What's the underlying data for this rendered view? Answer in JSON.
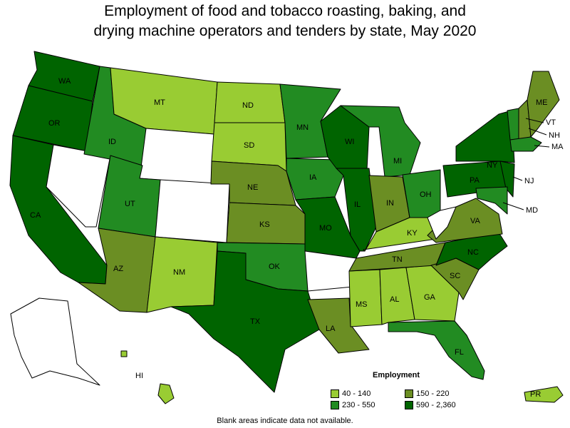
{
  "title_line1": "Employment of food and tobacco roasting, baking, and",
  "title_line2": "drying machine operators and tenders by state, May 2020",
  "legend": {
    "title": "Employment",
    "bins": [
      {
        "label": "40 - 140",
        "color": "#99cc33"
      },
      {
        "label": "150 - 220",
        "color": "#6b8e23"
      },
      {
        "label": "230 - 550",
        "color": "#228b22"
      },
      {
        "label": "590 - 2,360",
        "color": "#006400"
      }
    ]
  },
  "note": "Blank areas indicate data not available.",
  "colors": {
    "no_data": "#ffffff",
    "bin1": "#99cc33",
    "bin2": "#6b8e23",
    "bin3": "#228b22",
    "bin4": "#006400"
  },
  "states": {
    "WA": {
      "label": "WA",
      "bin": "590 - 2,360"
    },
    "OR": {
      "label": "OR",
      "bin": "590 - 2,360"
    },
    "CA": {
      "label": "CA",
      "bin": "590 - 2,360"
    },
    "ID": {
      "label": "ID",
      "bin": "230 - 550"
    },
    "MT": {
      "label": "MT",
      "bin": "40 - 140"
    },
    "ND": {
      "label": "ND",
      "bin": "40 - 140"
    },
    "SD": {
      "label": "SD",
      "bin": "40 - 140"
    },
    "MN": {
      "label": "MN",
      "bin": "230 - 550"
    },
    "WI": {
      "label": "WI",
      "bin": "590 - 2,360"
    },
    "MI": {
      "label": "MI",
      "bin": "230 - 550"
    },
    "UT": {
      "label": "UT",
      "bin": "230 - 550"
    },
    "NE": {
      "label": "NE",
      "bin": "150 - 220"
    },
    "IA": {
      "label": "IA",
      "bin": "230 - 550"
    },
    "IL": {
      "label": "IL",
      "bin": "590 - 2,360"
    },
    "IN": {
      "label": "IN",
      "bin": "150 - 220"
    },
    "OH": {
      "label": "OH",
      "bin": "230 - 550"
    },
    "KS": {
      "label": "KS",
      "bin": "150 - 220"
    },
    "MO": {
      "label": "MO",
      "bin": "590 - 2,360"
    },
    "KY": {
      "label": "KY",
      "bin": "40 - 140"
    },
    "AZ": {
      "label": "AZ",
      "bin": "150 - 220"
    },
    "NM": {
      "label": "NM",
      "bin": "40 - 140"
    },
    "OK": {
      "label": "OK",
      "bin": "230 - 550"
    },
    "TX": {
      "label": "TX",
      "bin": "590 - 2,360"
    },
    "TN": {
      "label": "TN",
      "bin": "150 - 220"
    },
    "MS": {
      "label": "MS",
      "bin": "40 - 140"
    },
    "AL": {
      "label": "AL",
      "bin": "40 - 140"
    },
    "GA": {
      "label": "GA",
      "bin": "40 - 140"
    },
    "LA": {
      "label": "LA",
      "bin": "150 - 220"
    },
    "FL": {
      "label": "FL",
      "bin": "230 - 550"
    },
    "SC": {
      "label": "SC",
      "bin": "150 - 220"
    },
    "NC": {
      "label": "NC",
      "bin": "590 - 2,360"
    },
    "VA": {
      "label": "VA",
      "bin": "150 - 220"
    },
    "PA": {
      "label": "PA",
      "bin": "590 - 2,360"
    },
    "NY": {
      "label": "NY",
      "bin": "590 - 2,360"
    },
    "NJ": {
      "label": "NJ",
      "bin": "590 - 2,360"
    },
    "MD": {
      "label": "MD",
      "bin": "230 - 550"
    },
    "ME": {
      "label": "ME",
      "bin": "150 - 220"
    },
    "VT": {
      "label": "VT",
      "bin": "230 - 550"
    },
    "NH": {
      "label": "NH",
      "bin": "150 - 220"
    },
    "MA": {
      "label": "MA",
      "bin": "230 - 550"
    },
    "HI": {
      "label": "HI",
      "bin": "40 - 140"
    },
    "PR": {
      "label": "PR",
      "bin": "40 - 140"
    },
    "NV": {
      "label": "",
      "bin": "none"
    },
    "WY": {
      "label": "",
      "bin": "none"
    },
    "CO": {
      "label": "",
      "bin": "none"
    },
    "AR": {
      "label": "",
      "bin": "none"
    },
    "WV": {
      "label": "",
      "bin": "none"
    },
    "AK": {
      "label": "",
      "bin": "none"
    }
  }
}
